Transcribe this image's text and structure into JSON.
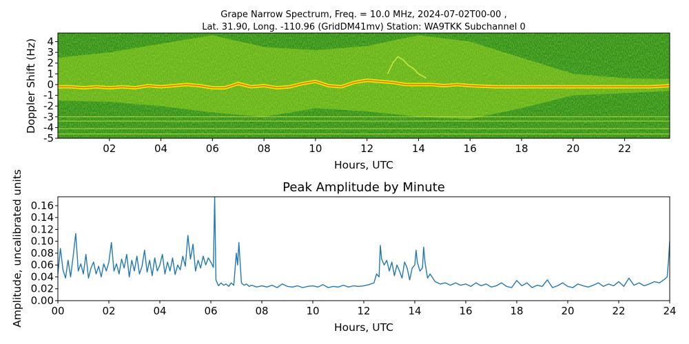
{
  "figure_title": {
    "line1": "Grape Narrow Spectrum, Freq. = 10.0 MHz, 2024-07-02T00-00 ,",
    "line2": "Lat.  31.90, Long. -110.96 (GridDM41mv) Station: WA9TKK Subchannel 0"
  },
  "colors": {
    "spectrogram_low": "#2f8f1f",
    "spectrogram_mid": "#9fd420",
    "spectrogram_high": "#ffee00",
    "spectrogram_peak": "#e84a1a",
    "line": "#1f77b4"
  },
  "chart_data": [
    {
      "type": "heatmap",
      "title": "",
      "xlabel": "Hours, UTC",
      "ylabel": "Doppler Shift (Hz)",
      "xlim": [
        0,
        23.75
      ],
      "ylim": [
        -5,
        4.8
      ],
      "x_ticks": [
        {
          "value": 2,
          "label": "02"
        },
        {
          "value": 4,
          "label": "04"
        },
        {
          "value": 6,
          "label": "06"
        },
        {
          "value": 8,
          "label": "08"
        },
        {
          "value": 10,
          "label": "10"
        },
        {
          "value": 12,
          "label": "12"
        },
        {
          "value": 14,
          "label": "14"
        },
        {
          "value": 16,
          "label": "16"
        },
        {
          "value": 18,
          "label": "18"
        },
        {
          "value": 20,
          "label": "20"
        },
        {
          "value": 22,
          "label": "22"
        }
      ],
      "y_ticks": [
        {
          "value": 4,
          "label": "4"
        },
        {
          "value": 3,
          "label": "3"
        },
        {
          "value": 2,
          "label": "2"
        },
        {
          "value": 1,
          "label": "1"
        },
        {
          "value": 0,
          "label": "0"
        },
        {
          "value": -1,
          "label": "-1"
        },
        {
          "value": -2,
          "label": "-2"
        },
        {
          "value": -3,
          "label": "-3"
        },
        {
          "value": -4,
          "label": "-4"
        },
        {
          "value": -5,
          "label": "-5"
        }
      ],
      "carrier_trace": [
        [
          0,
          -0.2
        ],
        [
          0.5,
          -0.2
        ],
        [
          1,
          -0.3
        ],
        [
          1.5,
          -0.2
        ],
        [
          2,
          -0.3
        ],
        [
          2.5,
          -0.2
        ],
        [
          3,
          -0.3
        ],
        [
          3.5,
          -0.1
        ],
        [
          4,
          -0.2
        ],
        [
          4.5,
          -0.1
        ],
        [
          5,
          0.0
        ],
        [
          5.5,
          -0.1
        ],
        [
          6,
          -0.3
        ],
        [
          6.5,
          -0.3
        ],
        [
          7,
          0.1
        ],
        [
          7.5,
          -0.2
        ],
        [
          8,
          -0.1
        ],
        [
          8.5,
          -0.3
        ],
        [
          9,
          -0.2
        ],
        [
          9.5,
          0.1
        ],
        [
          10,
          0.3
        ],
        [
          10.5,
          -0.1
        ],
        [
          11,
          -0.2
        ],
        [
          11.5,
          0.2
        ],
        [
          12,
          0.4
        ],
        [
          12.5,
          0.3
        ],
        [
          13,
          0.2
        ],
        [
          13.5,
          0.0
        ],
        [
          14,
          0.0
        ],
        [
          14.5,
          0.0
        ],
        [
          15,
          -0.1
        ],
        [
          15.5,
          0.0
        ],
        [
          16,
          -0.1
        ],
        [
          17,
          -0.2
        ],
        [
          18,
          -0.2
        ],
        [
          19,
          -0.2
        ],
        [
          20,
          -0.2
        ],
        [
          21,
          -0.2
        ],
        [
          22,
          -0.2
        ],
        [
          23,
          -0.2
        ],
        [
          23.75,
          -0.1
        ]
      ],
      "secondary_trace": [
        [
          12.8,
          1.0
        ],
        [
          13.0,
          2.0
        ],
        [
          13.2,
          2.6
        ],
        [
          13.4,
          2.3
        ],
        [
          13.6,
          1.8
        ],
        [
          13.8,
          1.5
        ],
        [
          14.0,
          1.0
        ],
        [
          14.3,
          0.6
        ]
      ],
      "bright_region_top_edge": [
        [
          0,
          2.5
        ],
        [
          2,
          3.0
        ],
        [
          4,
          3.8
        ],
        [
          6,
          4.6
        ],
        [
          8,
          3.5
        ],
        [
          10,
          3.2
        ],
        [
          12,
          3.6
        ],
        [
          14,
          4.6
        ],
        [
          16,
          4.0
        ],
        [
          18,
          2.5
        ],
        [
          20,
          1.0
        ],
        [
          22,
          0.6
        ],
        [
          23.75,
          0.5
        ]
      ],
      "bright_region_bottom_edge": [
        [
          0,
          -1.5
        ],
        [
          2,
          -1.6
        ],
        [
          4,
          -2.0
        ],
        [
          6,
          -2.6
        ],
        [
          8,
          -3.0
        ],
        [
          10,
          -2.2
        ],
        [
          12,
          -2.5
        ],
        [
          14,
          -3.0
        ],
        [
          16,
          -3.2
        ],
        [
          18,
          -2.2
        ],
        [
          20,
          -1.0
        ],
        [
          22,
          -0.8
        ],
        [
          23.75,
          -0.6
        ]
      ],
      "horizontal_lines_hz": [
        -3.0,
        -3.4,
        -4.1,
        -4.6
      ]
    },
    {
      "type": "line",
      "title": "Peak Amplitude by Minute",
      "xlabel": "Hours, UTC",
      "ylabel": "Amplitude, uncalibrated units",
      "xlim": [
        0,
        24
      ],
      "ylim": [
        0,
        0.175
      ],
      "x_ticks": [
        {
          "value": 0,
          "label": "00"
        },
        {
          "value": 2,
          "label": "02"
        },
        {
          "value": 4,
          "label": "04"
        },
        {
          "value": 6,
          "label": "06"
        },
        {
          "value": 8,
          "label": "08"
        },
        {
          "value": 10,
          "label": "10"
        },
        {
          "value": 12,
          "label": "12"
        },
        {
          "value": 14,
          "label": "14"
        },
        {
          "value": 16,
          "label": "16"
        },
        {
          "value": 18,
          "label": "18"
        },
        {
          "value": 20,
          "label": "20"
        },
        {
          "value": 22,
          "label": "22"
        },
        {
          "value": 24,
          "label": "24"
        }
      ],
      "y_ticks": [
        {
          "value": 0.0,
          "label": "0.00"
        },
        {
          "value": 0.02,
          "label": "0.02"
        },
        {
          "value": 0.04,
          "label": "0.04"
        },
        {
          "value": 0.06,
          "label": "0.06"
        },
        {
          "value": 0.08,
          "label": "0.08"
        },
        {
          "value": 0.1,
          "label": "0.10"
        },
        {
          "value": 0.12,
          "label": "0.12"
        },
        {
          "value": 0.14,
          "label": "0.14"
        },
        {
          "value": 0.16,
          "label": "0.16"
        }
      ],
      "series": [
        {
          "x": [
            0.0,
            0.1,
            0.2,
            0.3,
            0.4,
            0.5,
            0.6,
            0.7,
            0.8,
            0.9,
            1.0,
            1.1,
            1.2,
            1.3,
            1.4,
            1.5,
            1.6,
            1.7,
            1.8,
            1.9,
            2.0,
            2.1,
            2.2,
            2.3,
            2.4,
            2.5,
            2.6,
            2.7,
            2.8,
            2.9,
            3.0,
            3.1,
            3.2,
            3.3,
            3.4,
            3.5,
            3.6,
            3.7,
            3.8,
            3.9,
            4.0,
            4.1,
            4.2,
            4.3,
            4.4,
            4.5,
            4.6,
            4.7,
            4.8,
            4.9,
            5.0,
            5.1,
            5.2,
            5.3,
            5.4,
            5.5,
            5.6,
            5.7,
            5.8,
            5.9,
            6.0,
            6.1,
            6.15,
            6.2,
            6.3,
            6.4,
            6.5,
            6.6,
            6.7,
            6.8,
            6.9,
            7.0,
            7.05,
            7.1,
            7.2,
            7.3,
            7.4,
            7.5,
            7.6,
            7.8,
            8.0,
            8.2,
            8.4,
            8.6,
            8.8,
            9.0,
            9.2,
            9.4,
            9.6,
            9.8,
            10.0,
            10.2,
            10.4,
            10.6,
            10.8,
            11.0,
            11.2,
            11.4,
            11.6,
            11.8,
            12.0,
            12.2,
            12.4,
            12.5,
            12.6,
            12.65,
            12.7,
            12.8,
            12.9,
            13.0,
            13.1,
            13.2,
            13.3,
            13.4,
            13.5,
            13.6,
            13.7,
            13.8,
            13.9,
            14.0,
            14.05,
            14.1,
            14.2,
            14.3,
            14.35,
            14.4,
            14.5,
            14.6,
            14.8,
            15.0,
            15.2,
            15.4,
            15.6,
            15.8,
            16.0,
            16.2,
            16.4,
            16.6,
            16.8,
            17.0,
            17.2,
            17.4,
            17.6,
            17.8,
            18.0,
            18.2,
            18.4,
            18.6,
            18.8,
            19.0,
            19.2,
            19.4,
            19.6,
            19.8,
            20.0,
            20.2,
            20.4,
            20.6,
            20.8,
            21.0,
            21.2,
            21.4,
            21.6,
            21.8,
            22.0,
            22.2,
            22.4,
            22.6,
            22.8,
            23.0,
            23.2,
            23.4,
            23.6,
            23.8,
            23.9,
            23.95,
            24.0
          ],
          "values": [
            0.045,
            0.088,
            0.052,
            0.038,
            0.068,
            0.04,
            0.075,
            0.113,
            0.05,
            0.062,
            0.045,
            0.078,
            0.038,
            0.055,
            0.065,
            0.045,
            0.058,
            0.04,
            0.062,
            0.05,
            0.065,
            0.098,
            0.05,
            0.062,
            0.045,
            0.07,
            0.055,
            0.078,
            0.04,
            0.068,
            0.05,
            0.075,
            0.045,
            0.058,
            0.085,
            0.048,
            0.068,
            0.042,
            0.072,
            0.05,
            0.06,
            0.078,
            0.045,
            0.065,
            0.05,
            0.072,
            0.044,
            0.06,
            0.052,
            0.075,
            0.058,
            0.11,
            0.07,
            0.095,
            0.05,
            0.068,
            0.055,
            0.075,
            0.06,
            0.072,
            0.065,
            0.056,
            0.175,
            0.035,
            0.025,
            0.03,
            0.026,
            0.028,
            0.024,
            0.03,
            0.026,
            0.08,
            0.06,
            0.098,
            0.03,
            0.026,
            0.028,
            0.024,
            0.026,
            0.023,
            0.025,
            0.023,
            0.026,
            0.022,
            0.028,
            0.024,
            0.023,
            0.025,
            0.022,
            0.024,
            0.025,
            0.023,
            0.027,
            0.022,
            0.024,
            0.023,
            0.026,
            0.023,
            0.025,
            0.024,
            0.025,
            0.027,
            0.03,
            0.045,
            0.04,
            0.093,
            0.07,
            0.06,
            0.068,
            0.05,
            0.065,
            0.042,
            0.06,
            0.05,
            0.038,
            0.065,
            0.055,
            0.035,
            0.055,
            0.06,
            0.085,
            0.065,
            0.05,
            0.055,
            0.09,
            0.065,
            0.038,
            0.045,
            0.032,
            0.028,
            0.03,
            0.026,
            0.03,
            0.026,
            0.028,
            0.024,
            0.03,
            0.025,
            0.028,
            0.023,
            0.025,
            0.03,
            0.024,
            0.022,
            0.034,
            0.025,
            0.03,
            0.022,
            0.026,
            0.024,
            0.035,
            0.022,
            0.025,
            0.03,
            0.024,
            0.022,
            0.028,
            0.025,
            0.023,
            0.026,
            0.03,
            0.024,
            0.028,
            0.025,
            0.032,
            0.024,
            0.038,
            0.026,
            0.03,
            0.025,
            0.028,
            0.032,
            0.03,
            0.036,
            0.04,
            0.065,
            0.1
          ]
        }
      ]
    }
  ]
}
